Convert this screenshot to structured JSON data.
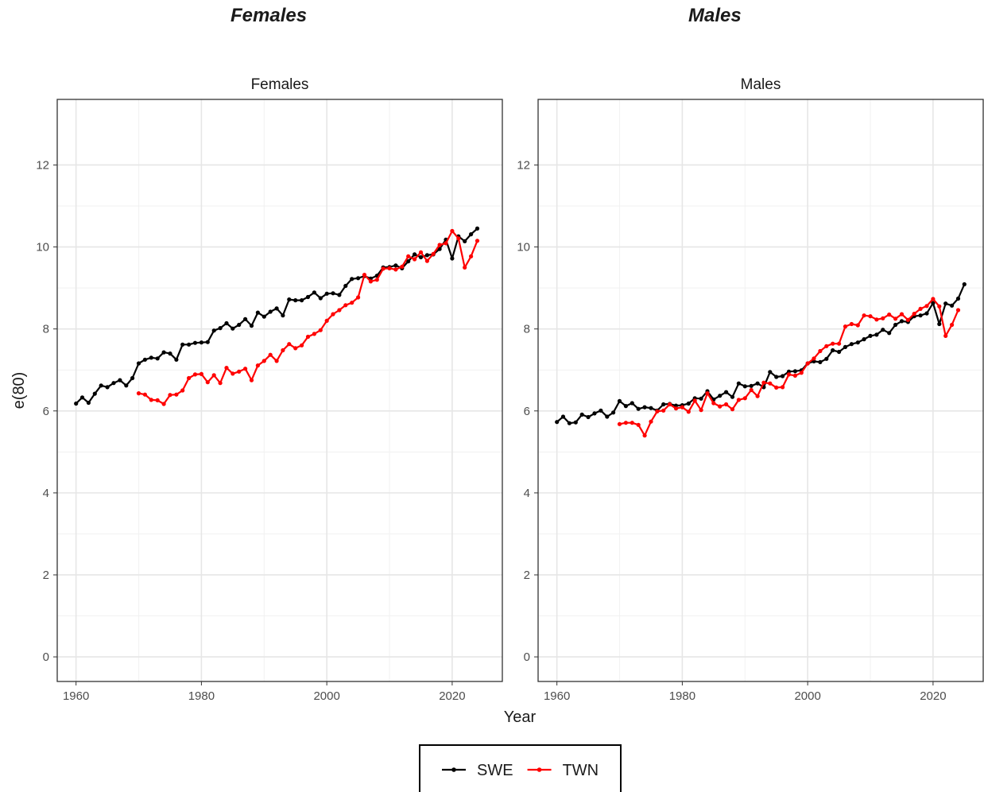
{
  "headings": {
    "left": "Females",
    "right": "Males"
  },
  "chart_data": {
    "type": "line",
    "x_label": "Year",
    "y_label": "e(80)",
    "xlim": [
      1957,
      2028
    ],
    "ylim": [
      -0.6,
      13.6
    ],
    "x_ticks": [
      1960,
      1980,
      2000,
      2020
    ],
    "y_ticks": [
      0,
      2,
      4,
      6,
      8,
      10,
      12
    ],
    "grid": true,
    "legend_position": "bottom",
    "legend": [
      {
        "name": "SWE",
        "color": "#000000"
      },
      {
        "name": "TWN",
        "color": "#ff0000"
      }
    ],
    "panels": [
      {
        "strip": "Females",
        "series": [
          {
            "name": "SWE",
            "color": "#000000",
            "x_start": 1960,
            "values": [
              6.18,
              6.33,
              6.2,
              6.42,
              6.62,
              6.58,
              6.68,
              6.75,
              6.62,
              6.8,
              7.16,
              7.25,
              7.3,
              7.28,
              7.43,
              7.4,
              7.25,
              7.62,
              7.62,
              7.66,
              7.67,
              7.68,
              7.96,
              8.02,
              8.14,
              8.01,
              8.1,
              8.24,
              8.08,
              8.4,
              8.3,
              8.42,
              8.5,
              8.33,
              8.72,
              8.7,
              8.7,
              8.78,
              8.89,
              8.75,
              8.86,
              8.87,
              8.83,
              9.05,
              9.22,
              9.24,
              9.29,
              9.23,
              9.3,
              9.5,
              9.51,
              9.55,
              9.48,
              9.65,
              9.82,
              9.75,
              9.8,
              9.82,
              9.95,
              10.18,
              9.72,
              10.26,
              10.14,
              10.31,
              10.45
            ]
          },
          {
            "name": "TWN",
            "color": "#ff0000",
            "x_start": 1970,
            "values": [
              6.43,
              6.4,
              6.27,
              6.26,
              6.17,
              6.39,
              6.4,
              6.5,
              6.8,
              6.89,
              6.9,
              6.7,
              6.87,
              6.68,
              7.05,
              6.91,
              6.96,
              7.03,
              6.75,
              7.11,
              7.22,
              7.37,
              7.22,
              7.48,
              7.63,
              7.53,
              7.6,
              7.81,
              7.88,
              7.97,
              8.2,
              8.36,
              8.46,
              8.58,
              8.64,
              8.77,
              9.32,
              9.16,
              9.2,
              9.47,
              9.48,
              9.45,
              9.52,
              9.77,
              9.7,
              9.87,
              9.66,
              9.83,
              10.05,
              10.09,
              10.39,
              10.21,
              9.5,
              9.77,
              10.15
            ]
          }
        ]
      },
      {
        "strip": "Males",
        "series": [
          {
            "name": "SWE",
            "color": "#000000",
            "x_start": 1960,
            "values": [
              5.73,
              5.86,
              5.7,
              5.72,
              5.91,
              5.85,
              5.94,
              6.01,
              5.86,
              5.96,
              6.24,
              6.12,
              6.19,
              6.05,
              6.09,
              6.07,
              6.01,
              6.16,
              6.17,
              6.13,
              6.14,
              6.18,
              6.31,
              6.3,
              6.48,
              6.28,
              6.37,
              6.46,
              6.34,
              6.67,
              6.6,
              6.61,
              6.67,
              6.58,
              6.95,
              6.83,
              6.85,
              6.96,
              6.97,
              6.99,
              7.16,
              7.21,
              7.19,
              7.27,
              7.48,
              7.44,
              7.56,
              7.63,
              7.67,
              7.75,
              7.83,
              7.86,
              7.98,
              7.9,
              8.1,
              8.19,
              8.17,
              8.31,
              8.33,
              8.38,
              8.63,
              8.12,
              8.62,
              8.57,
              8.74,
              9.09
            ]
          },
          {
            "name": "TWN",
            "color": "#ff0000",
            "x_start": 1970,
            "values": [
              5.68,
              5.71,
              5.71,
              5.66,
              5.4,
              5.74,
              5.99,
              6.01,
              6.16,
              6.06,
              6.09,
              5.98,
              6.25,
              6.02,
              6.43,
              6.19,
              6.11,
              6.16,
              6.04,
              6.27,
              6.31,
              6.51,
              6.36,
              6.69,
              6.67,
              6.57,
              6.58,
              6.89,
              6.86,
              6.93,
              7.16,
              7.28,
              7.46,
              7.58,
              7.64,
              7.64,
              8.06,
              8.12,
              8.09,
              8.33,
              8.31,
              8.23,
              8.26,
              8.35,
              8.25,
              8.36,
              8.22,
              8.37,
              8.49,
              8.56,
              8.73,
              8.55,
              7.83,
              8.1,
              8.46
            ]
          }
        ]
      }
    ]
  }
}
